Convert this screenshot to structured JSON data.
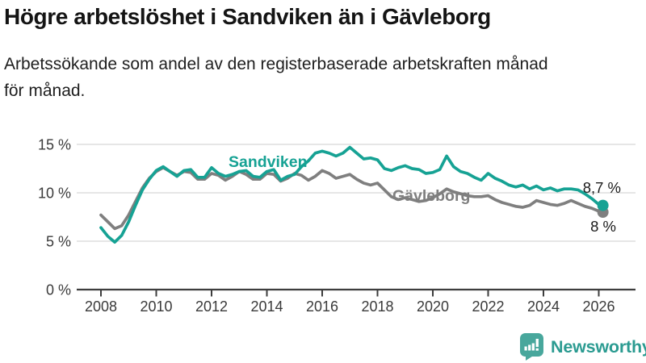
{
  "header": {
    "subtitle_lines": [
      "Arbetssökande som andel av den registerbaserade arbetskraften månad",
      "för månad."
    ]
  },
  "chart_data": {
    "type": "line",
    "title": "Högre arbetslöshet i Sandviken än i Gävleborg",
    "subtitle": "Arbetssökande som andel av den registerbaserade arbetskraften månad för månad.",
    "unit": "%",
    "grid": "horizontal",
    "legend": "inline-labels-on-lines",
    "ylim": [
      0,
      15.5
    ],
    "yticks": [
      0,
      5,
      10,
      15
    ],
    "ytick_labels": [
      "0 %",
      "5 %",
      "10 %",
      "15 %"
    ],
    "xticks": [
      2008,
      2010,
      2012,
      2014,
      2016,
      2018,
      2020,
      2022,
      2024,
      2026
    ],
    "xtick_labels": [
      "2008",
      "2010",
      "2012",
      "2014",
      "2016",
      "2018",
      "2020",
      "2022",
      "2024",
      "2026"
    ],
    "x": [
      2008,
      2008.25,
      2008.5,
      2008.75,
      2009,
      2009.25,
      2009.5,
      2009.75,
      2010,
      2010.25,
      2010.5,
      2010.75,
      2011,
      2011.25,
      2011.5,
      2011.75,
      2012,
      2012.25,
      2012.5,
      2012.75,
      2013,
      2013.25,
      2013.5,
      2013.75,
      2014,
      2014.25,
      2014.5,
      2014.75,
      2015,
      2015.25,
      2015.5,
      2015.75,
      2016,
      2016.25,
      2016.5,
      2016.75,
      2017,
      2017.25,
      2017.5,
      2017.75,
      2018,
      2018.25,
      2018.5,
      2018.75,
      2019,
      2019.25,
      2019.5,
      2019.75,
      2020,
      2020.25,
      2020.5,
      2020.75,
      2021,
      2021.25,
      2021.5,
      2021.75,
      2022,
      2022.25,
      2022.5,
      2022.75,
      2023,
      2023.25,
      2023.5,
      2023.75,
      2024,
      2024.25,
      2024.5,
      2024.75,
      2025,
      2025.25,
      2025.5,
      2025.75,
      2026,
      2026.15
    ],
    "series": [
      {
        "name": "Sandviken",
        "color": "#16A294",
        "end_label": "8,7 %",
        "values": [
          6.4,
          5.5,
          4.9,
          5.6,
          7.0,
          8.7,
          10.3,
          11.4,
          12.3,
          12.7,
          12.2,
          11.7,
          12.3,
          12.4,
          11.6,
          11.6,
          12.6,
          12.0,
          11.7,
          11.9,
          12.2,
          12.3,
          11.7,
          11.6,
          12.2,
          12.4,
          11.3,
          11.7,
          11.9,
          12.7,
          13.3,
          14.1,
          14.3,
          14.1,
          13.8,
          14.1,
          14.7,
          14.1,
          13.5,
          13.6,
          13.4,
          12.5,
          12.3,
          12.6,
          12.8,
          12.5,
          12.4,
          12.0,
          12.1,
          12.4,
          13.8,
          12.7,
          12.2,
          12.0,
          11.6,
          11.3,
          12.0,
          11.5,
          11.2,
          10.8,
          10.6,
          10.8,
          10.4,
          10.7,
          10.3,
          10.5,
          10.2,
          10.4,
          10.4,
          10.3,
          9.9,
          9.4,
          8.8,
          8.7
        ]
      },
      {
        "name": "Gävleborg",
        "color": "#7F7F7F",
        "end_label": "8 %",
        "values": [
          7.7,
          7.0,
          6.3,
          6.6,
          7.7,
          9.1,
          10.5,
          11.5,
          12.2,
          12.6,
          12.2,
          11.8,
          12.2,
          12.1,
          11.4,
          11.4,
          12.0,
          11.8,
          11.3,
          11.7,
          12.2,
          11.9,
          11.4,
          11.4,
          12.0,
          11.9,
          11.2,
          11.5,
          12.0,
          11.8,
          11.3,
          11.7,
          12.3,
          12.0,
          11.5,
          11.7,
          11.9,
          11.4,
          11.0,
          10.8,
          11.0,
          10.3,
          9.6,
          9.3,
          9.5,
          9.3,
          9.1,
          9.2,
          9.5,
          9.9,
          10.4,
          10.1,
          9.9,
          9.7,
          9.6,
          9.6,
          9.7,
          9.3,
          9.0,
          8.8,
          8.6,
          8.5,
          8.7,
          9.2,
          9.0,
          8.8,
          8.7,
          8.9,
          9.2,
          8.9,
          8.6,
          8.4,
          8.1,
          8.0
        ]
      }
    ]
  },
  "footer": {
    "brand": "Newsworthy",
    "logo_icon": "bar-chart-speech-bubble-icon",
    "brand_text_color": "#2B9B91",
    "logo_bg_color": "#48A79C"
  },
  "style": {
    "gridline_color": "#dedede",
    "axis_color": "#3d3d3d",
    "text_color": "#3a3a3a"
  }
}
